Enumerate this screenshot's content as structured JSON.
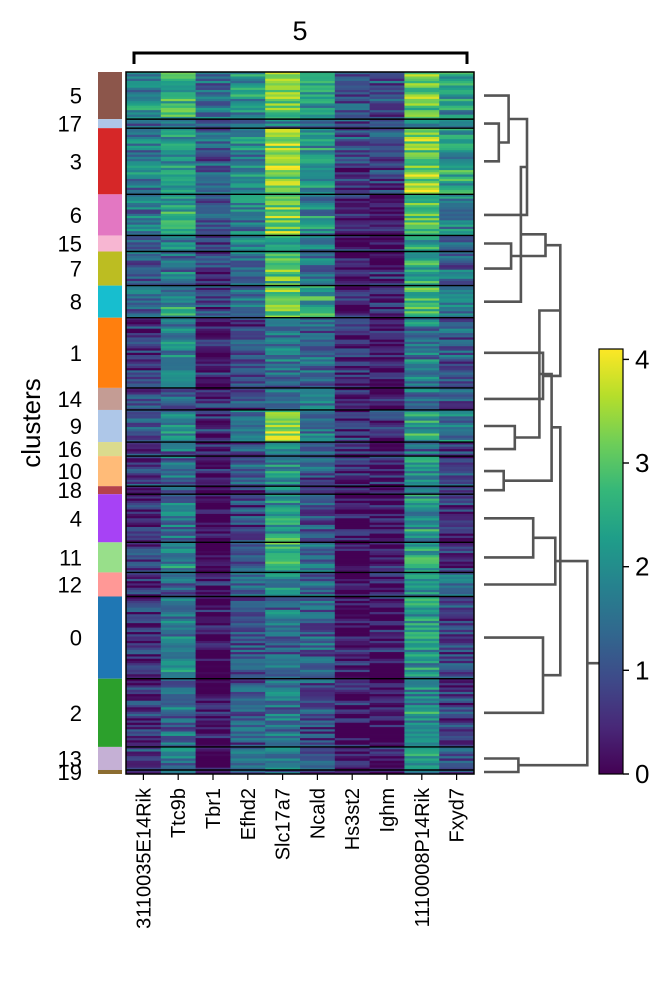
{
  "chart_data": {
    "type": "heatmap",
    "title": "",
    "group_label": "5",
    "ylabel": "clusters",
    "genes": [
      "3110035E14Rik",
      "Ttc9b",
      "Tbr1",
      "Efhd2",
      "Slc17a7",
      "Ncald",
      "Hs3st2",
      "Ighm",
      "1110008P14Rik",
      "Fxyd7"
    ],
    "clusters": [
      {
        "name": "5",
        "size": 47,
        "color": "#8c564b",
        "mean_expression": [
          1.9,
          2.7,
          1.4,
          2.0,
          3.3,
          2.3,
          1.1,
          1.1,
          3.1,
          2.2
        ]
      },
      {
        "name": "17",
        "size": 9,
        "color": "#aec7e8",
        "mean_expression": [
          1.1,
          1.7,
          1.2,
          1.3,
          1.8,
          1.4,
          1.0,
          1.0,
          1.8,
          1.2
        ]
      },
      {
        "name": "3",
        "size": 66,
        "color": "#d62728",
        "mean_expression": [
          1.6,
          2.3,
          1.3,
          1.8,
          3.5,
          2.1,
          0.8,
          0.8,
          3.3,
          2.3
        ]
      },
      {
        "name": "6",
        "size": 41,
        "color": "#e377c2",
        "mean_expression": [
          1.5,
          2.3,
          0.9,
          1.7,
          3.1,
          2.0,
          0.3,
          0.2,
          3.0,
          1.9
        ]
      },
      {
        "name": "15",
        "size": 16,
        "color": "#f7b6d2",
        "mean_expression": [
          1.2,
          2.0,
          0.6,
          1.5,
          2.4,
          1.7,
          0.3,
          0.3,
          2.5,
          1.5
        ]
      },
      {
        "name": "7",
        "size": 34,
        "color": "#bcbd22",
        "mean_expression": [
          1.2,
          1.6,
          0.6,
          1.3,
          2.8,
          1.4,
          0.4,
          0.4,
          2.5,
          1.3
        ]
      },
      {
        "name": "8",
        "size": 32,
        "color": "#17becf",
        "mean_expression": [
          1.3,
          2.1,
          0.8,
          1.6,
          3.1,
          2.3,
          0.5,
          0.5,
          2.7,
          1.8
        ]
      },
      {
        "name": "1",
        "size": 70,
        "color": "#ff7f0e",
        "mean_expression": [
          0.6,
          1.6,
          0.3,
          0.9,
          1.5,
          1.2,
          0.4,
          0.3,
          1.6,
          1.0
        ]
      },
      {
        "name": "14",
        "size": 22,
        "color": "#c49c94",
        "mean_expression": [
          0.8,
          1.3,
          0.4,
          1.0,
          1.4,
          1.6,
          0.5,
          0.5,
          1.5,
          1.0
        ]
      },
      {
        "name": "9",
        "size": 32,
        "color": "#aec7e8",
        "mean_expression": [
          1.1,
          1.9,
          0.5,
          1.8,
          3.6,
          1.5,
          0.6,
          0.6,
          2.3,
          1.6
        ]
      },
      {
        "name": "16",
        "size": 14,
        "color": "#dbdb8d",
        "mean_expression": [
          0.7,
          1.3,
          0.3,
          1.0,
          1.6,
          1.0,
          0.4,
          0.4,
          1.5,
          0.8
        ]
      },
      {
        "name": "10",
        "size": 30,
        "color": "#ffbb78",
        "mean_expression": [
          0.6,
          1.4,
          0.3,
          1.0,
          2.1,
          1.1,
          0.4,
          0.4,
          2.2,
          0.8
        ]
      },
      {
        "name": "18",
        "size": 8,
        "color": "#b5424b",
        "mean_expression": [
          0.5,
          1.2,
          0.3,
          0.8,
          1.8,
          1.0,
          0.3,
          0.3,
          1.8,
          0.6
        ]
      },
      {
        "name": "4",
        "size": 48,
        "color": "#a742f5",
        "mean_expression": [
          0.4,
          1.6,
          0.1,
          0.9,
          2.2,
          1.1,
          0.1,
          0.1,
          2.0,
          0.5
        ]
      },
      {
        "name": "11",
        "size": 30,
        "color": "#98df8a",
        "mean_expression": [
          0.7,
          2.0,
          0.2,
          1.2,
          2.8,
          1.4,
          0.2,
          0.2,
          2.2,
          0.7
        ]
      },
      {
        "name": "12",
        "size": 24,
        "color": "#ff9896",
        "mean_expression": [
          0.6,
          1.4,
          0.2,
          1.3,
          1.8,
          1.2,
          0.2,
          0.2,
          2.1,
          1.6
        ]
      },
      {
        "name": "0",
        "size": 82,
        "color": "#1f77b4",
        "mean_expression": [
          0.6,
          1.8,
          0.1,
          1.0,
          1.5,
          1.2,
          0.2,
          0.2,
          2.2,
          0.8
        ]
      },
      {
        "name": "2",
        "size": 68,
        "color": "#2ca02c",
        "mean_expression": [
          0.5,
          1.4,
          0.1,
          1.2,
          1.5,
          1.0,
          0.2,
          0.2,
          2.0,
          0.7
        ]
      },
      {
        "name": "13",
        "size": 23,
        "color": "#c5b0d5",
        "mean_expression": [
          0.8,
          1.6,
          0.1,
          1.4,
          1.5,
          1.2,
          0.3,
          0.3,
          2.4,
          1.2
        ]
      },
      {
        "name": "19",
        "size": 4,
        "color": "#8c6d31",
        "mean_expression": [
          0.5,
          1.2,
          0.1,
          1.0,
          1.3,
          0.9,
          0.2,
          0.2,
          1.8,
          0.8
        ]
      }
    ],
    "colorbar": {
      "ticks": [
        0,
        1,
        2,
        3,
        4
      ],
      "min": 0,
      "max": 4.1,
      "colormap": "viridis"
    },
    "dendrogram": "right",
    "grid": false
  }
}
